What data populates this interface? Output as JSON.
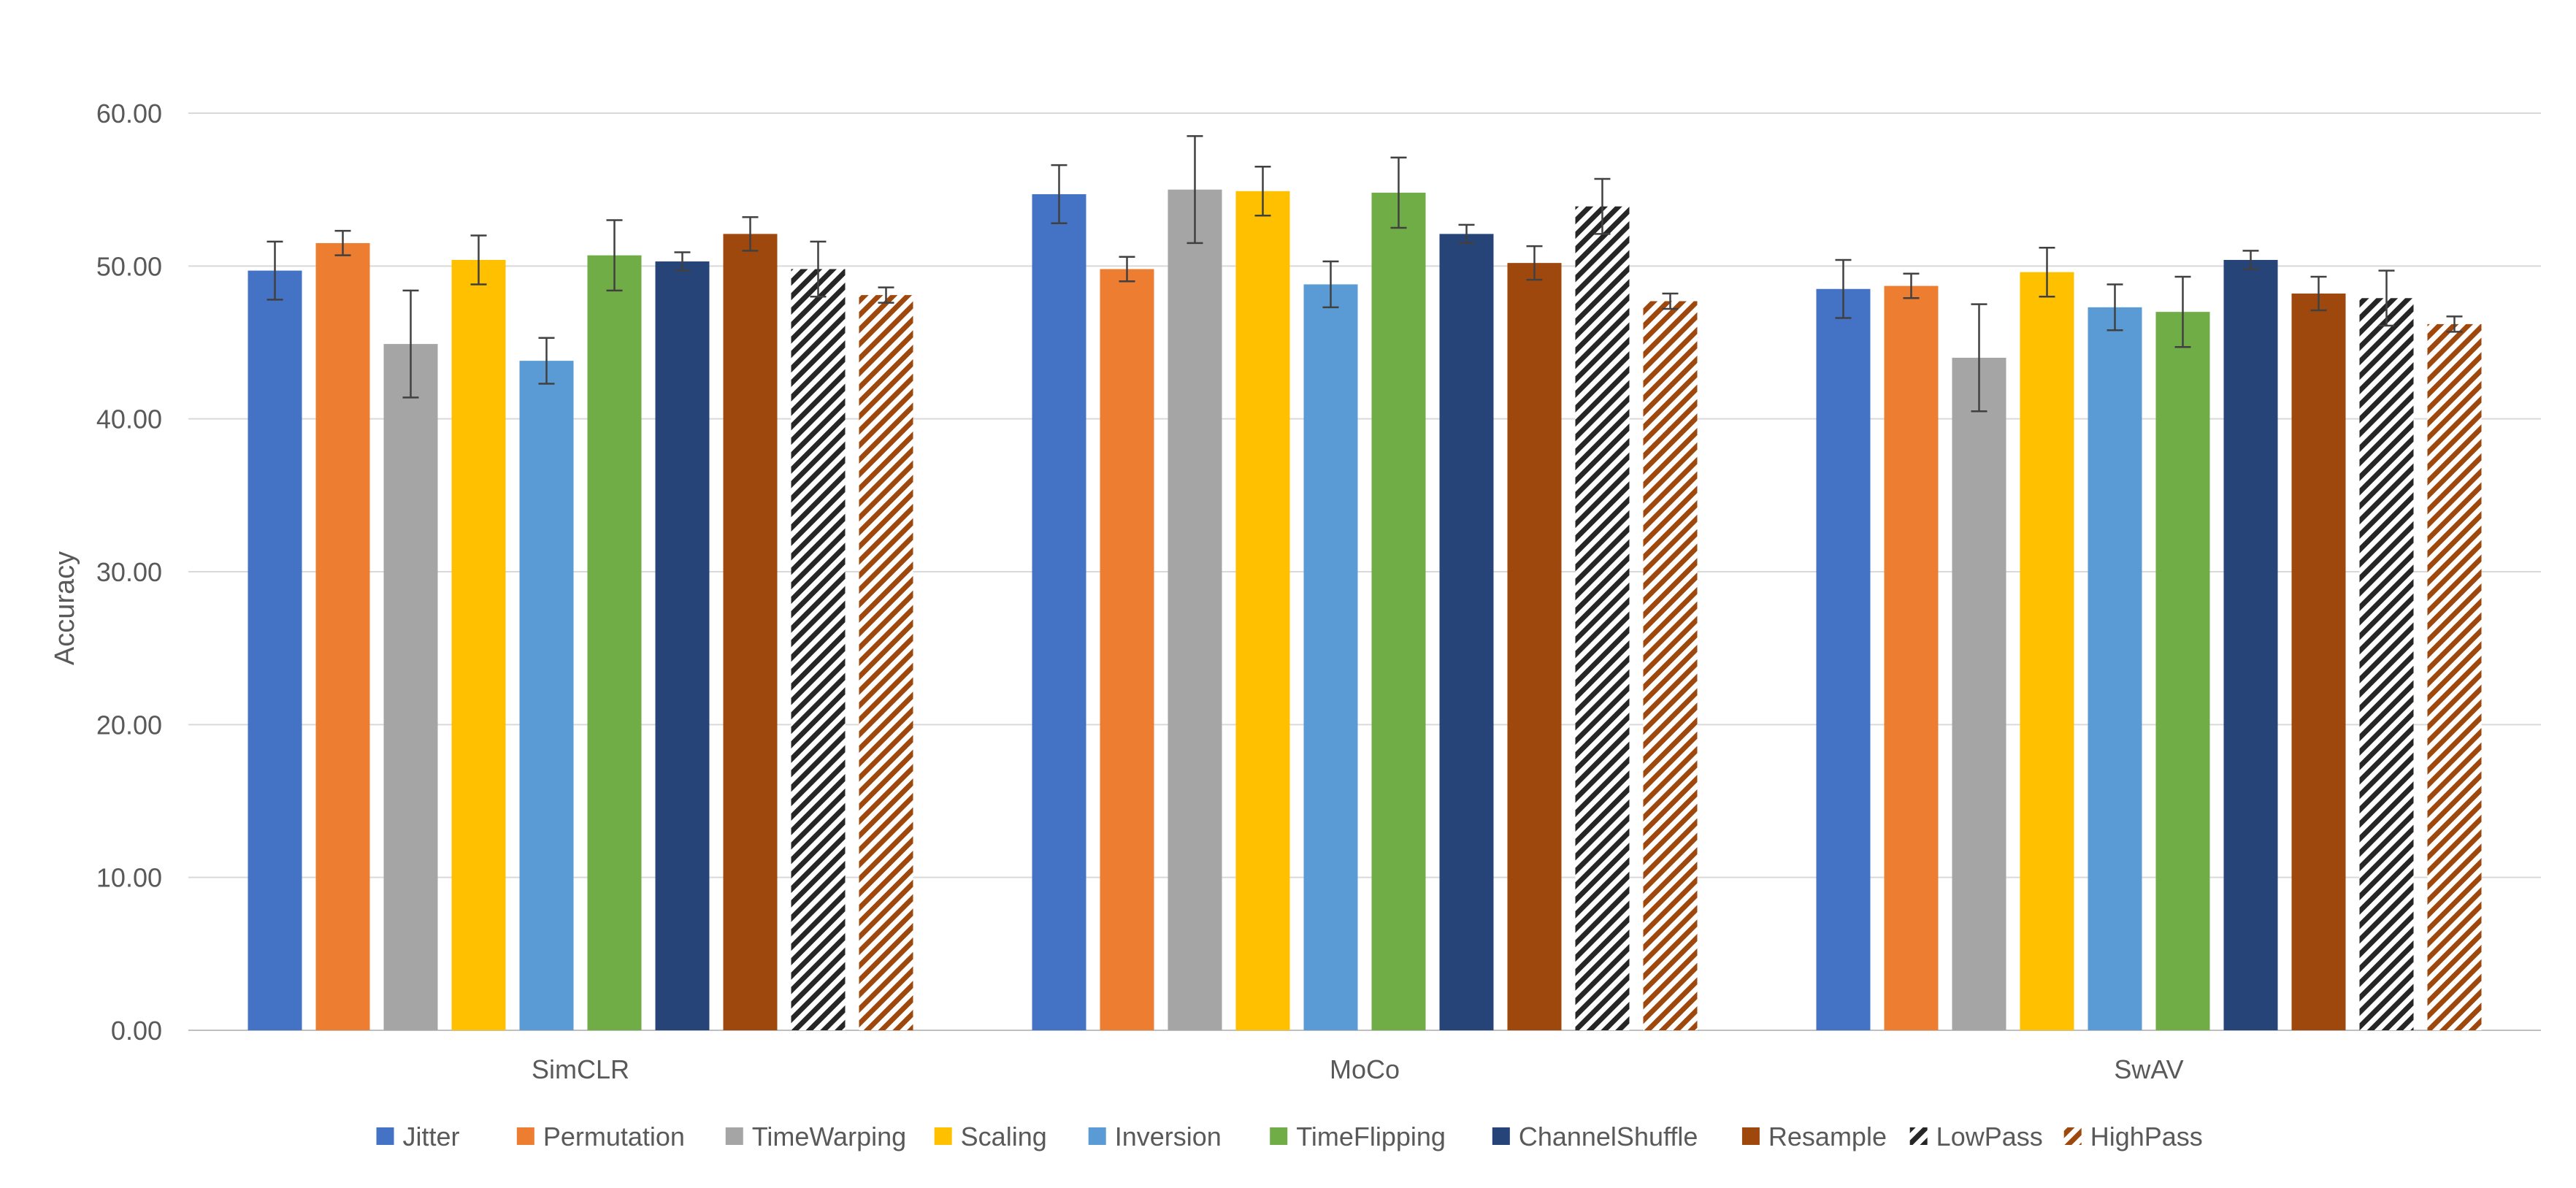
{
  "chart_data": {
    "type": "bar",
    "title": "",
    "xlabel": "",
    "ylabel": "Accuracy",
    "ylim": [
      0,
      60
    ],
    "yticks": [
      "0.00",
      "10.00",
      "20.00",
      "30.00",
      "40.00",
      "50.00",
      "60.00"
    ],
    "grid": true,
    "legend_position": "bottom",
    "categories": [
      "SimCLR",
      "MoCo",
      "SwAV"
    ],
    "series": [
      {
        "name": "Jitter",
        "color": "#4472C4",
        "pattern": "solid",
        "values": [
          49.7,
          54.7,
          48.5
        ],
        "errors": [
          1.9,
          1.9,
          1.9
        ]
      },
      {
        "name": "Permutation",
        "color": "#ED7D31",
        "pattern": "solid",
        "values": [
          51.5,
          49.8,
          48.7
        ],
        "errors": [
          0.8,
          0.8,
          0.8
        ]
      },
      {
        "name": "TimeWarping",
        "color": "#A5A5A5",
        "pattern": "solid",
        "values": [
          44.9,
          55.0,
          44.0
        ],
        "errors": [
          3.5,
          3.5,
          3.5
        ]
      },
      {
        "name": "Scaling",
        "color": "#FFC000",
        "pattern": "solid",
        "values": [
          50.4,
          54.9,
          49.6
        ],
        "errors": [
          1.6,
          1.6,
          1.6
        ]
      },
      {
        "name": "Inversion",
        "color": "#5B9BD5",
        "pattern": "solid",
        "values": [
          43.8,
          48.8,
          47.3
        ],
        "errors": [
          1.5,
          1.5,
          1.5
        ]
      },
      {
        "name": "TimeFlipping",
        "color": "#70AD47",
        "pattern": "solid",
        "values": [
          50.7,
          54.8,
          47.0
        ],
        "errors": [
          2.3,
          2.3,
          2.3
        ]
      },
      {
        "name": "ChannelShuffle",
        "color": "#264478",
        "pattern": "solid",
        "values": [
          50.3,
          52.1,
          50.4
        ],
        "errors": [
          0.6,
          0.6,
          0.6
        ]
      },
      {
        "name": "Resample",
        "color": "#9E480E",
        "pattern": "solid",
        "values": [
          52.1,
          50.2,
          48.2
        ],
        "errors": [
          1.1,
          1.1,
          1.1
        ]
      },
      {
        "name": "LowPass",
        "color": "#262626",
        "pattern": "hatch",
        "values": [
          49.8,
          53.9,
          47.9
        ],
        "errors": [
          1.8,
          1.8,
          1.8
        ]
      },
      {
        "name": "HighPass",
        "color": "#9E480E",
        "pattern": "hatch",
        "values": [
          48.1,
          47.7,
          46.2
        ],
        "errors": [
          0.5,
          0.5,
          0.5
        ]
      }
    ]
  }
}
